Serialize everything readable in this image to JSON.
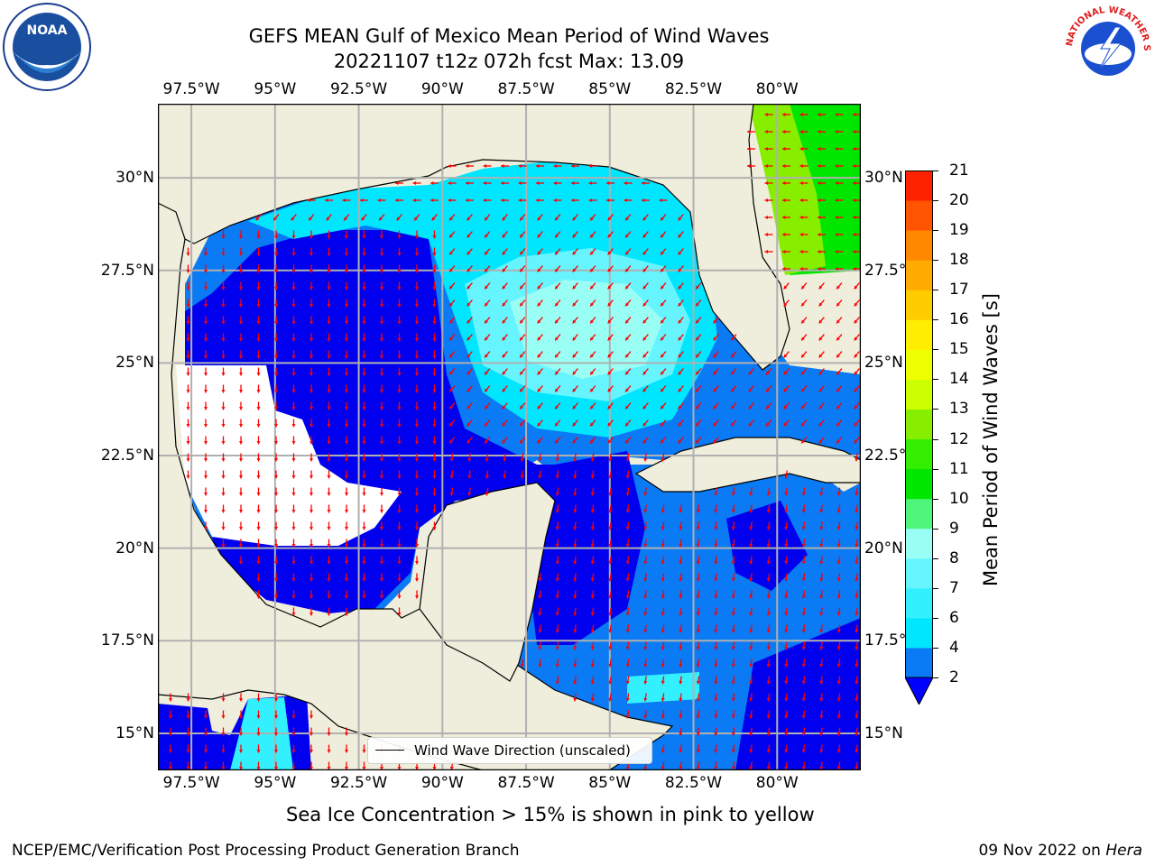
{
  "title": {
    "line1": "GEFS MEAN Gulf of Mexico Mean Period of Wind Waves",
    "line2": "20221107 t12z 072h fcst   Max: 13.09"
  },
  "map": {
    "lon_range": [
      -98.5,
      -77.5
    ],
    "lat_range": [
      14,
      32
    ],
    "lon_ticks": [
      "97.5°W",
      "95°W",
      "92.5°W",
      "90°W",
      "87.5°W",
      "85°W",
      "82.5°W",
      "80°W"
    ],
    "lat_ticks": [
      "15°N",
      "17.5°N",
      "20°N",
      "22.5°N",
      "25°N",
      "27.5°N",
      "30°N"
    ],
    "land_color": "#efeedc",
    "grid_color": "#b0b0b0",
    "arrow_color": "#ff0000",
    "legend_label": "Wind Wave Direction (unscaled)"
  },
  "colorbar": {
    "label": "Mean Period of Wind Waves [s]",
    "ticks": [
      "2",
      "4",
      "6",
      "7",
      "8",
      "9",
      "10",
      "11",
      "12",
      "13",
      "14",
      "15",
      "16",
      "17",
      "18",
      "19",
      "20",
      "21"
    ],
    "colors": [
      "#0a7af5",
      "#00e6ff",
      "#33f0ff",
      "#66f5ff",
      "#99fff5",
      "#4df57a",
      "#00e600",
      "#33ee00",
      "#88ee00",
      "#ccff00",
      "#eeff00",
      "#ffee00",
      "#ffcc00",
      "#ffaa00",
      "#ff8800",
      "#ff5500",
      "#ff2200",
      "#ff0000"
    ],
    "extend_color": "#0000ff"
  },
  "caption": "Sea Ice Concentration > 15% is shown in pink to yellow",
  "footer": {
    "left": "NCEP/EMC/Verification Post Processing Product Generation Branch",
    "right_date": "09 Nov 2022 on ",
    "right_host": "Hera"
  },
  "logos": {
    "left": "noaa-logo",
    "left_text": "NOAA",
    "right": "nws-logo",
    "right_text": "NATIONAL WEATHER SERVICE"
  }
}
